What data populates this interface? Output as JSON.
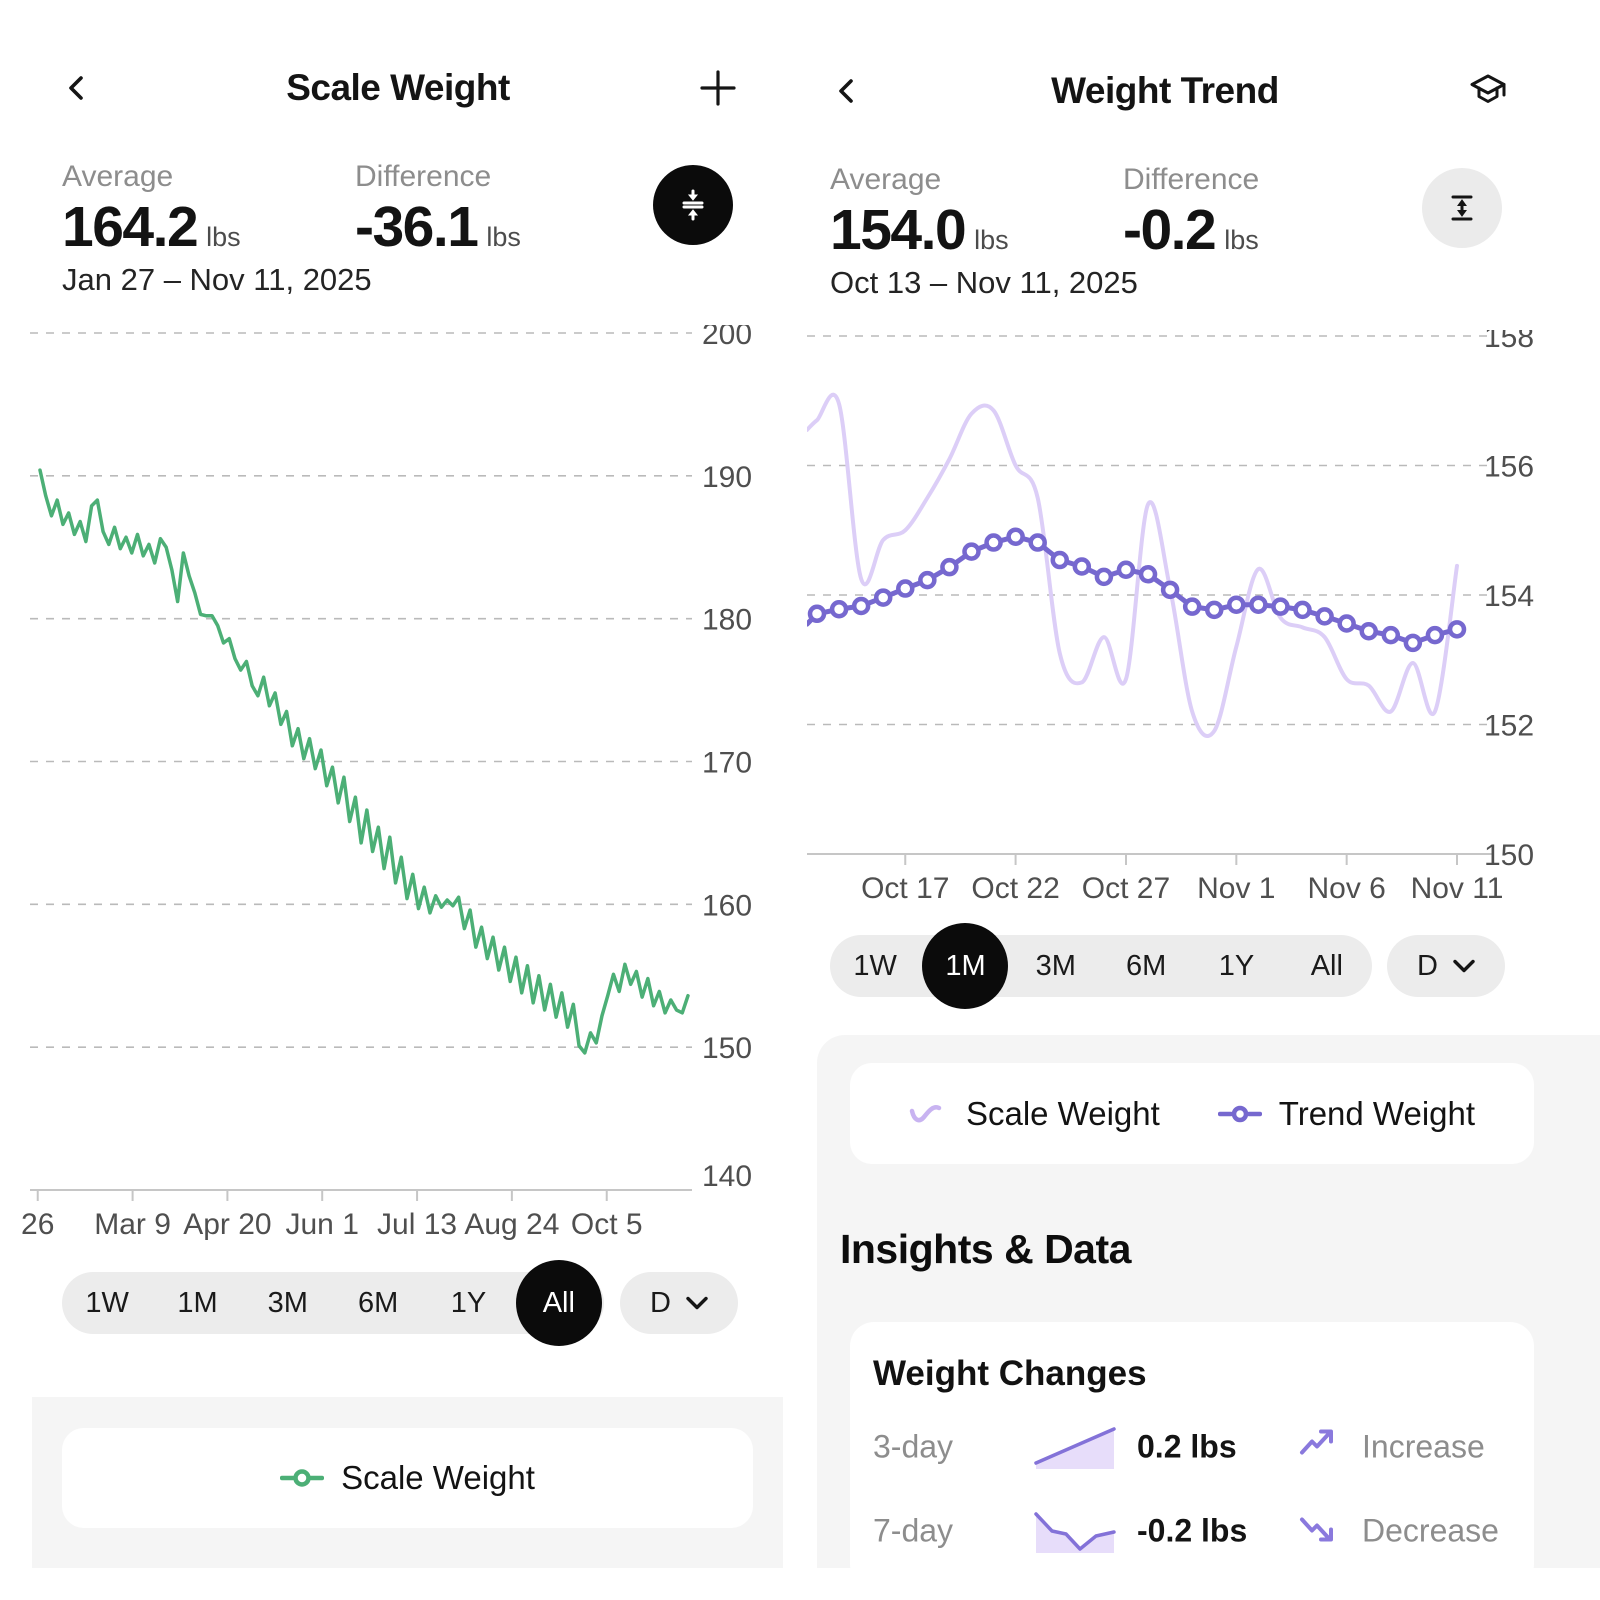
{
  "left_screen": {
    "title": "Scale Weight",
    "stats": {
      "average_label": "Average",
      "average_value": "164.2",
      "average_unit": "lbs",
      "difference_label": "Difference",
      "difference_value": "-36.1",
      "difference_unit": "lbs"
    },
    "date_range": "Jan 27 – Nov 11, 2025",
    "time_ranges": [
      "1W",
      "1M",
      "3M",
      "6M",
      "1Y",
      "All"
    ],
    "selected_range": "All",
    "granularity": "D",
    "legend": [
      {
        "label": "Scale Weight",
        "color": "#4caf76"
      }
    ]
  },
  "right_screen": {
    "title": "Weight Trend",
    "stats": {
      "average_label": "Average",
      "average_value": "154.0",
      "average_unit": "lbs",
      "difference_label": "Difference",
      "difference_value": "-0.2",
      "difference_unit": "lbs"
    },
    "date_range": "Oct 13 – Nov 11, 2025",
    "time_ranges": [
      "1W",
      "1M",
      "3M",
      "6M",
      "1Y",
      "All"
    ],
    "selected_range": "1M",
    "granularity": "D",
    "legend": [
      {
        "label": "Scale Weight",
        "color": "#dccef7"
      },
      {
        "label": "Trend Weight",
        "color": "#7668cf"
      }
    ],
    "insights": {
      "heading": "Insights & Data",
      "card_title": "Weight Changes",
      "rows": [
        {
          "period": "3-day",
          "value": "0.2 lbs",
          "direction": "Increase",
          "spark": [
            [
              3,
              40
            ],
            [
              81,
              6
            ]
          ]
        },
        {
          "period": "7-day",
          "value": "-0.2 lbs",
          "direction": "Decrease",
          "spark": [
            [
              3,
              7
            ],
            [
              19,
              24
            ],
            [
              33,
              27
            ],
            [
              47,
              42
            ],
            [
              63,
              29
            ],
            [
              81,
              25
            ]
          ]
        }
      ]
    }
  },
  "chart_data": [
    {
      "type": "line",
      "title": "Scale Weight — All (daily)",
      "ylabel": "lbs",
      "ylim": [
        140,
        200
      ],
      "grid": true,
      "y_ticks": [
        200,
        190,
        180,
        170,
        160,
        150,
        140
      ],
      "x_ticks": [
        {
          "label": "26",
          "pos": -0.0035
        },
        {
          "label": "Mar 9",
          "pos": 0.1429
        },
        {
          "label": "Apr 20",
          "pos": 0.2892
        },
        {
          "label": "Jun 1",
          "pos": 0.4355
        },
        {
          "label": "Jul 13",
          "pos": 0.5819
        },
        {
          "label": "Aug 24",
          "pos": 0.7282
        },
        {
          "label": "Oct 5",
          "pos": 0.8746
        }
      ],
      "series": [
        {
          "name": "Scale Weight",
          "color": "#4caf76",
          "width": 3.5,
          "values": [
            190.4,
            188.6,
            187.2,
            188.3,
            186.6,
            187.4,
            185.9,
            186.8,
            185.4,
            187.9,
            188.3,
            186.1,
            185.2,
            186.4,
            184.9,
            185.7,
            184.6,
            185.9,
            184.4,
            185.2,
            183.9,
            185.6,
            185.0,
            183.4,
            181.2,
            184.6,
            183.0,
            181.8,
            180.3,
            180.2,
            180.2,
            179.5,
            178.3,
            178.6,
            177.2,
            176.4,
            177.0,
            175.3,
            174.6,
            175.9,
            173.9,
            174.8,
            172.6,
            173.5,
            171.1,
            172.3,
            170.2,
            171.6,
            169.5,
            170.8,
            168.3,
            169.6,
            167.1,
            168.9,
            165.8,
            167.5,
            164.3,
            166.6,
            163.7,
            165.4,
            162.5,
            164.7,
            161.5,
            163.3,
            160.4,
            162.1,
            159.7,
            161.2,
            159.4,
            160.6,
            159.8,
            160.3,
            159.9,
            160.5,
            158.3,
            159.6,
            157.0,
            158.4,
            156.2,
            157.7,
            155.4,
            157.0,
            154.6,
            156.3,
            153.8,
            155.7,
            153.1,
            155.0,
            152.6,
            154.4,
            152.1,
            153.8,
            151.4,
            153.0,
            150.1,
            149.6,
            151.0,
            150.3,
            152.2,
            153.6,
            155.1,
            153.9,
            155.8,
            154.4,
            155.3,
            153.5,
            154.8,
            152.9,
            153.9,
            152.4,
            153.3,
            152.6,
            152.4,
            153.6
          ]
        }
      ]
    },
    {
      "type": "line",
      "title": "Weight Trend — 1M (daily)",
      "ylabel": "lbs",
      "ylim": [
        150,
        158
      ],
      "grid": true,
      "y_ticks": [
        158,
        156,
        154,
        152,
        150
      ],
      "x_ticks": [
        {
          "label": "Oct 17",
          "pos": 0.1379
        },
        {
          "label": "Oct 22",
          "pos": 0.3103
        },
        {
          "label": "Oct 27",
          "pos": 0.4828
        },
        {
          "label": "Nov 1",
          "pos": 0.6552
        },
        {
          "label": "Nov 6",
          "pos": 0.8276
        },
        {
          "label": "Nov 11",
          "pos": 1.0
        }
      ],
      "series": [
        {
          "name": "Scale Weight",
          "color": "#dccef7",
          "width": 4,
          "smooth": true,
          "lead": 156.55,
          "values": [
            156.7,
            156.95,
            154.25,
            154.85,
            155.0,
            155.5,
            156.1,
            156.8,
            156.85,
            156.0,
            155.5,
            153.1,
            152.65,
            153.35,
            152.7,
            155.4,
            154.1,
            152.2,
            151.9,
            153.2,
            154.4,
            153.65,
            153.5,
            153.35,
            152.7,
            152.6,
            152.2,
            152.95,
            152.2,
            154.45
          ]
        },
        {
          "name": "Trend Weight",
          "color": "#7668cf",
          "width": 5,
          "markers": true,
          "lead": 153.55,
          "values": [
            153.71,
            153.78,
            153.83,
            153.96,
            154.1,
            154.23,
            154.43,
            154.67,
            154.81,
            154.9,
            154.81,
            154.54,
            154.44,
            154.28,
            154.39,
            154.32,
            154.08,
            153.82,
            153.77,
            153.85,
            153.85,
            153.82,
            153.77,
            153.67,
            153.56,
            153.44,
            153.38,
            153.26,
            153.38,
            153.47
          ]
        }
      ]
    }
  ],
  "colors": {
    "accent_green": "#4caf76",
    "scale_purple": "#dccef7",
    "trend_purple": "#7668cf",
    "legend_wave_purple": "#c8b3f1",
    "spark_line": "#8372d8",
    "spark_fill": "#e7ddfa",
    "arrow_purple": "#8a79dd",
    "grid_line": "#bababa",
    "axis_line": "#c6c6c6",
    "axis_text": "#4f4f4f",
    "pill_bg": "#ececec",
    "selected_bg": "#0b0b0b",
    "section_bg": "#f5f5f5"
  }
}
